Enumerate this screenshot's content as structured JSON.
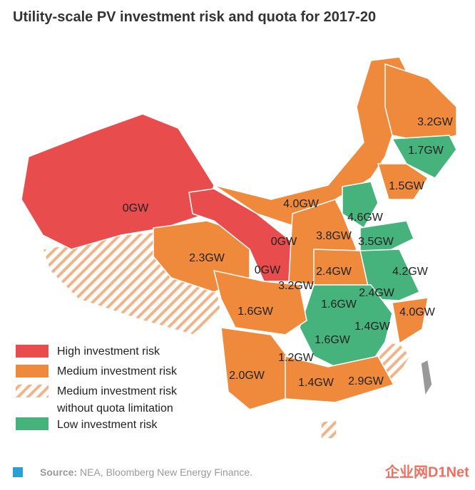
{
  "title": "Utility-scale PV investment risk and quota for 2017-20",
  "regions": [
    {
      "label": "0GW"
    },
    {
      "label": "2.3GW"
    },
    {
      "label": "4.0GW"
    },
    {
      "label": "0GW"
    },
    {
      "label": "0GW"
    },
    {
      "label": "3.2GW"
    },
    {
      "label": "1.6GW"
    },
    {
      "label": "3.2GW"
    },
    {
      "label": "1.7GW"
    },
    {
      "label": "1.5GW"
    },
    {
      "label": "4.6GW"
    },
    {
      "label": "3.5GW"
    },
    {
      "label": "3.8GW"
    },
    {
      "label": "2.4GW"
    },
    {
      "label": "4.2GW"
    },
    {
      "label": "2.4GW"
    },
    {
      "label": "1.6GW"
    },
    {
      "label": "1.4GW"
    },
    {
      "label": "4.0GW"
    },
    {
      "label": "1.6GW"
    },
    {
      "label": "1.2GW"
    },
    {
      "label": "2.0GW"
    },
    {
      "label": "1.4GW"
    },
    {
      "label": "2.9GW"
    }
  ],
  "legend": [
    {
      "label": "High investment risk"
    },
    {
      "label": "Medium investment risk"
    },
    {
      "label": "Medium investment risk",
      "label2": "without quota limitation"
    },
    {
      "label": "Low investment risk"
    }
  ],
  "source": {
    "prefix": "Source:",
    "text": "NEA, Bloomberg New Energy Finance."
  },
  "watermark": "企业网D1Net"
}
